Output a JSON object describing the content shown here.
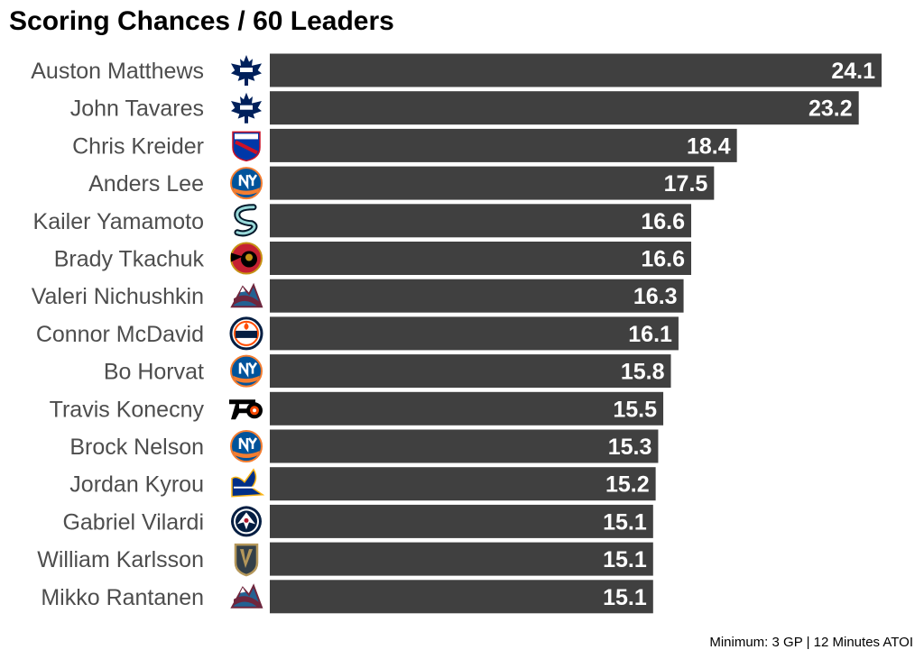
{
  "chart_data": {
    "type": "bar",
    "orientation": "horizontal",
    "title": "Scoring Chances / 60 Leaders",
    "caption": "Minimum: 3 GP | 12 Minutes ATOI",
    "categories": [
      "Auston Matthews",
      "John Tavares",
      "Chris Kreider",
      "Anders Lee",
      "Kailer Yamamoto",
      "Brady Tkachuk",
      "Valeri Nichushkin",
      "Connor McDavid",
      "Bo Horvat",
      "Travis Konecny",
      "Brock Nelson",
      "Jordan Kyrou",
      "Gabriel Vilardi",
      "William Karlsson",
      "Mikko Rantanen"
    ],
    "values": [
      24.1,
      23.2,
      18.4,
      17.5,
      16.6,
      16.6,
      16.3,
      16.1,
      15.8,
      15.5,
      15.3,
      15.2,
      15.1,
      15.1,
      15.1
    ],
    "teams": [
      "maple-leafs",
      "maple-leafs",
      "rangers",
      "islanders",
      "kraken",
      "senators",
      "avalanche",
      "oilers",
      "islanders",
      "flyers",
      "islanders",
      "blues",
      "jets",
      "golden-knights",
      "avalanche"
    ],
    "xlim": [
      0,
      24.1
    ],
    "bar_color": "#404040",
    "value_label_color": "#ffffff",
    "grid": false,
    "legend": "none"
  }
}
